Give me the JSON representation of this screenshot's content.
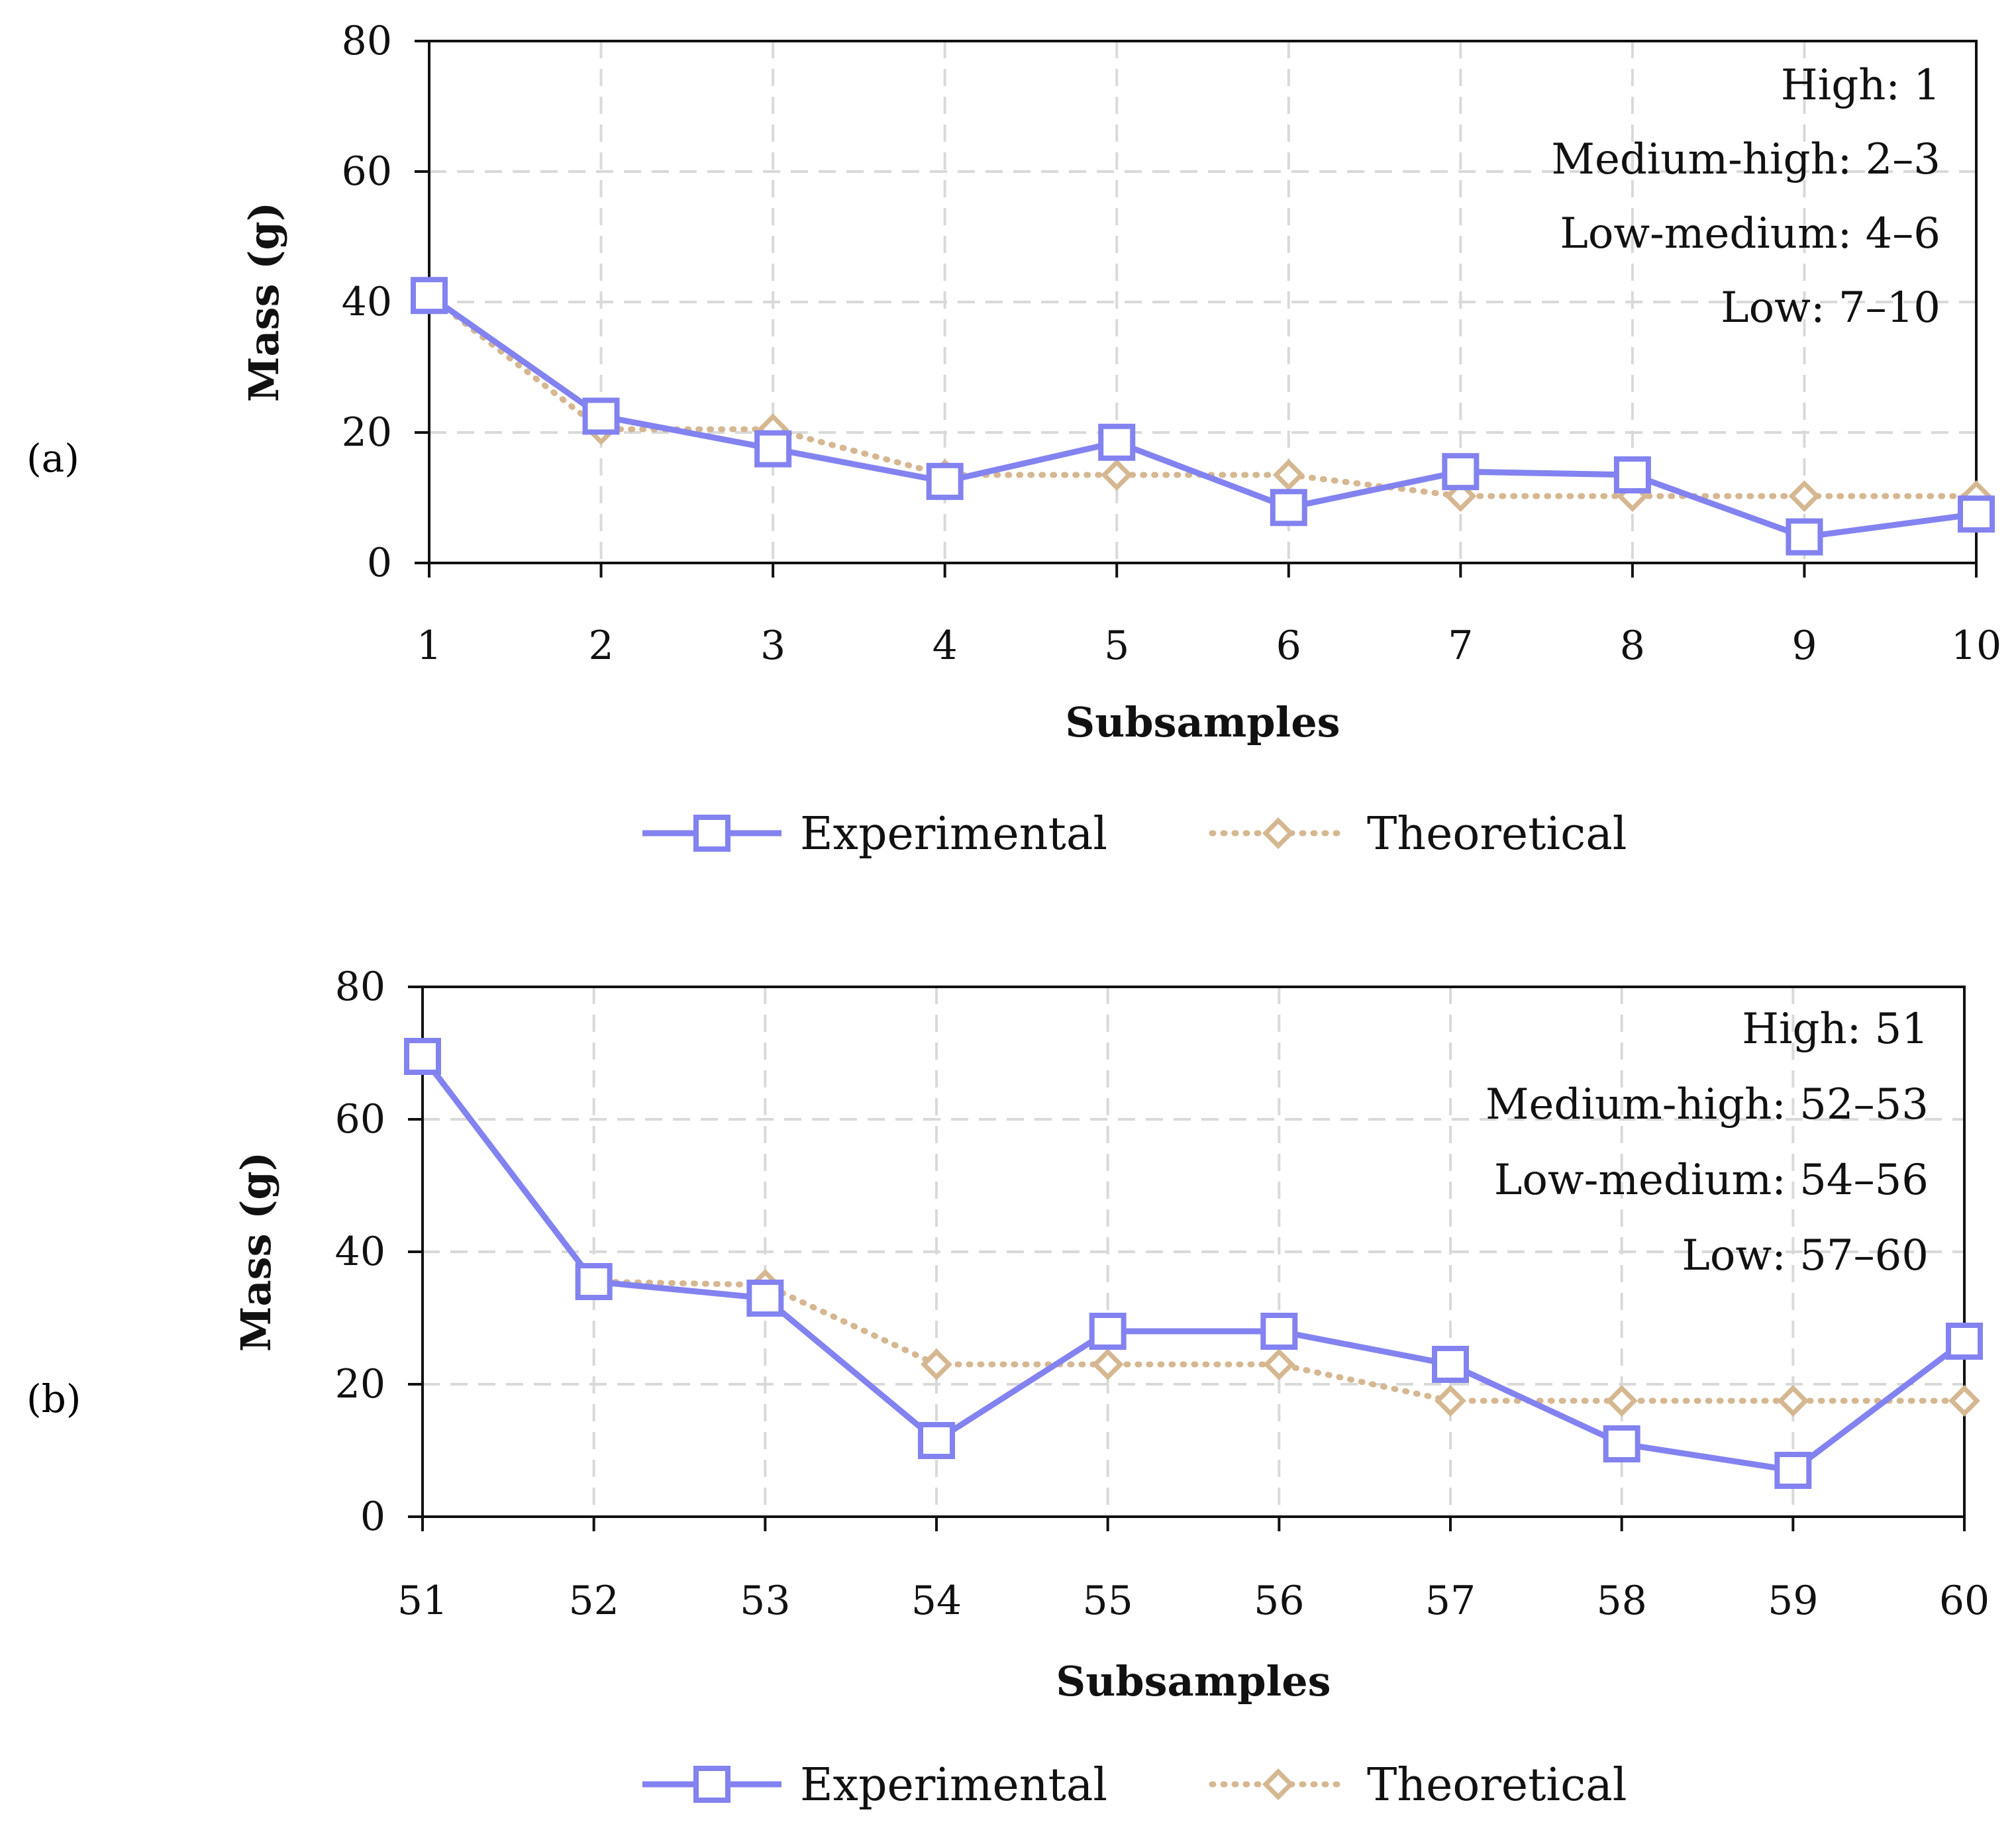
{
  "chart_data": [
    {
      "type": "line",
      "panel_label": "(a)",
      "categories": [
        "1",
        "2",
        "3",
        "4",
        "5",
        "6",
        "7",
        "8",
        "9",
        "10"
      ],
      "xlabel": "Subsamples",
      "ylabel": "Mass (g)",
      "ylim": [
        0,
        80
      ],
      "yticks": [
        "0",
        "20",
        "40",
        "60",
        "80"
      ],
      "grid": true,
      "legend_position": "bottom",
      "annotations": [
        "High: 1",
        "Medium-high: 2–3",
        "Low-medium: 4–6",
        "Low: 7–10"
      ],
      "series": [
        {
          "name": "Experimental",
          "values": [
            41,
            22.5,
            17.5,
            12.5,
            18.5,
            8.5,
            14,
            13.5,
            4,
            7.5
          ],
          "color": "#8282f0",
          "marker": "square",
          "style": "solid"
        },
        {
          "name": "Theoretical",
          "values": [
            41,
            20.5,
            20.5,
            13.5,
            13.5,
            13.5,
            10.25,
            10.25,
            10.25,
            10.25
          ],
          "color": "#d5b791",
          "marker": "diamond",
          "style": "dotted"
        }
      ]
    },
    {
      "type": "line",
      "panel_label": "(b)",
      "categories": [
        "51",
        "52",
        "53",
        "54",
        "55",
        "56",
        "57",
        "58",
        "59",
        "60"
      ],
      "xlabel": "Subsamples",
      "ylabel": "Mass (g)",
      "ylim": [
        0,
        80
      ],
      "yticks": [
        "0",
        "20",
        "40",
        "60",
        "80"
      ],
      "grid": true,
      "legend_position": "bottom",
      "annotations": [
        "High: 51",
        "Medium-high: 52–53",
        "Low-medium: 54–56",
        "Low: 57–60"
      ],
      "series": [
        {
          "name": "Experimental",
          "values": [
            69.5,
            35.5,
            33,
            11.5,
            28,
            28,
            23,
            11,
            7,
            26.5
          ],
          "color": "#8282f0",
          "marker": "square",
          "style": "solid"
        },
        {
          "name": "Theoretical",
          "values": [
            69.5,
            35.5,
            35,
            23,
            23,
            23,
            17.5,
            17.5,
            17.5,
            17.5
          ],
          "color": "#d5b791",
          "marker": "diamond",
          "style": "dotted"
        }
      ]
    }
  ]
}
